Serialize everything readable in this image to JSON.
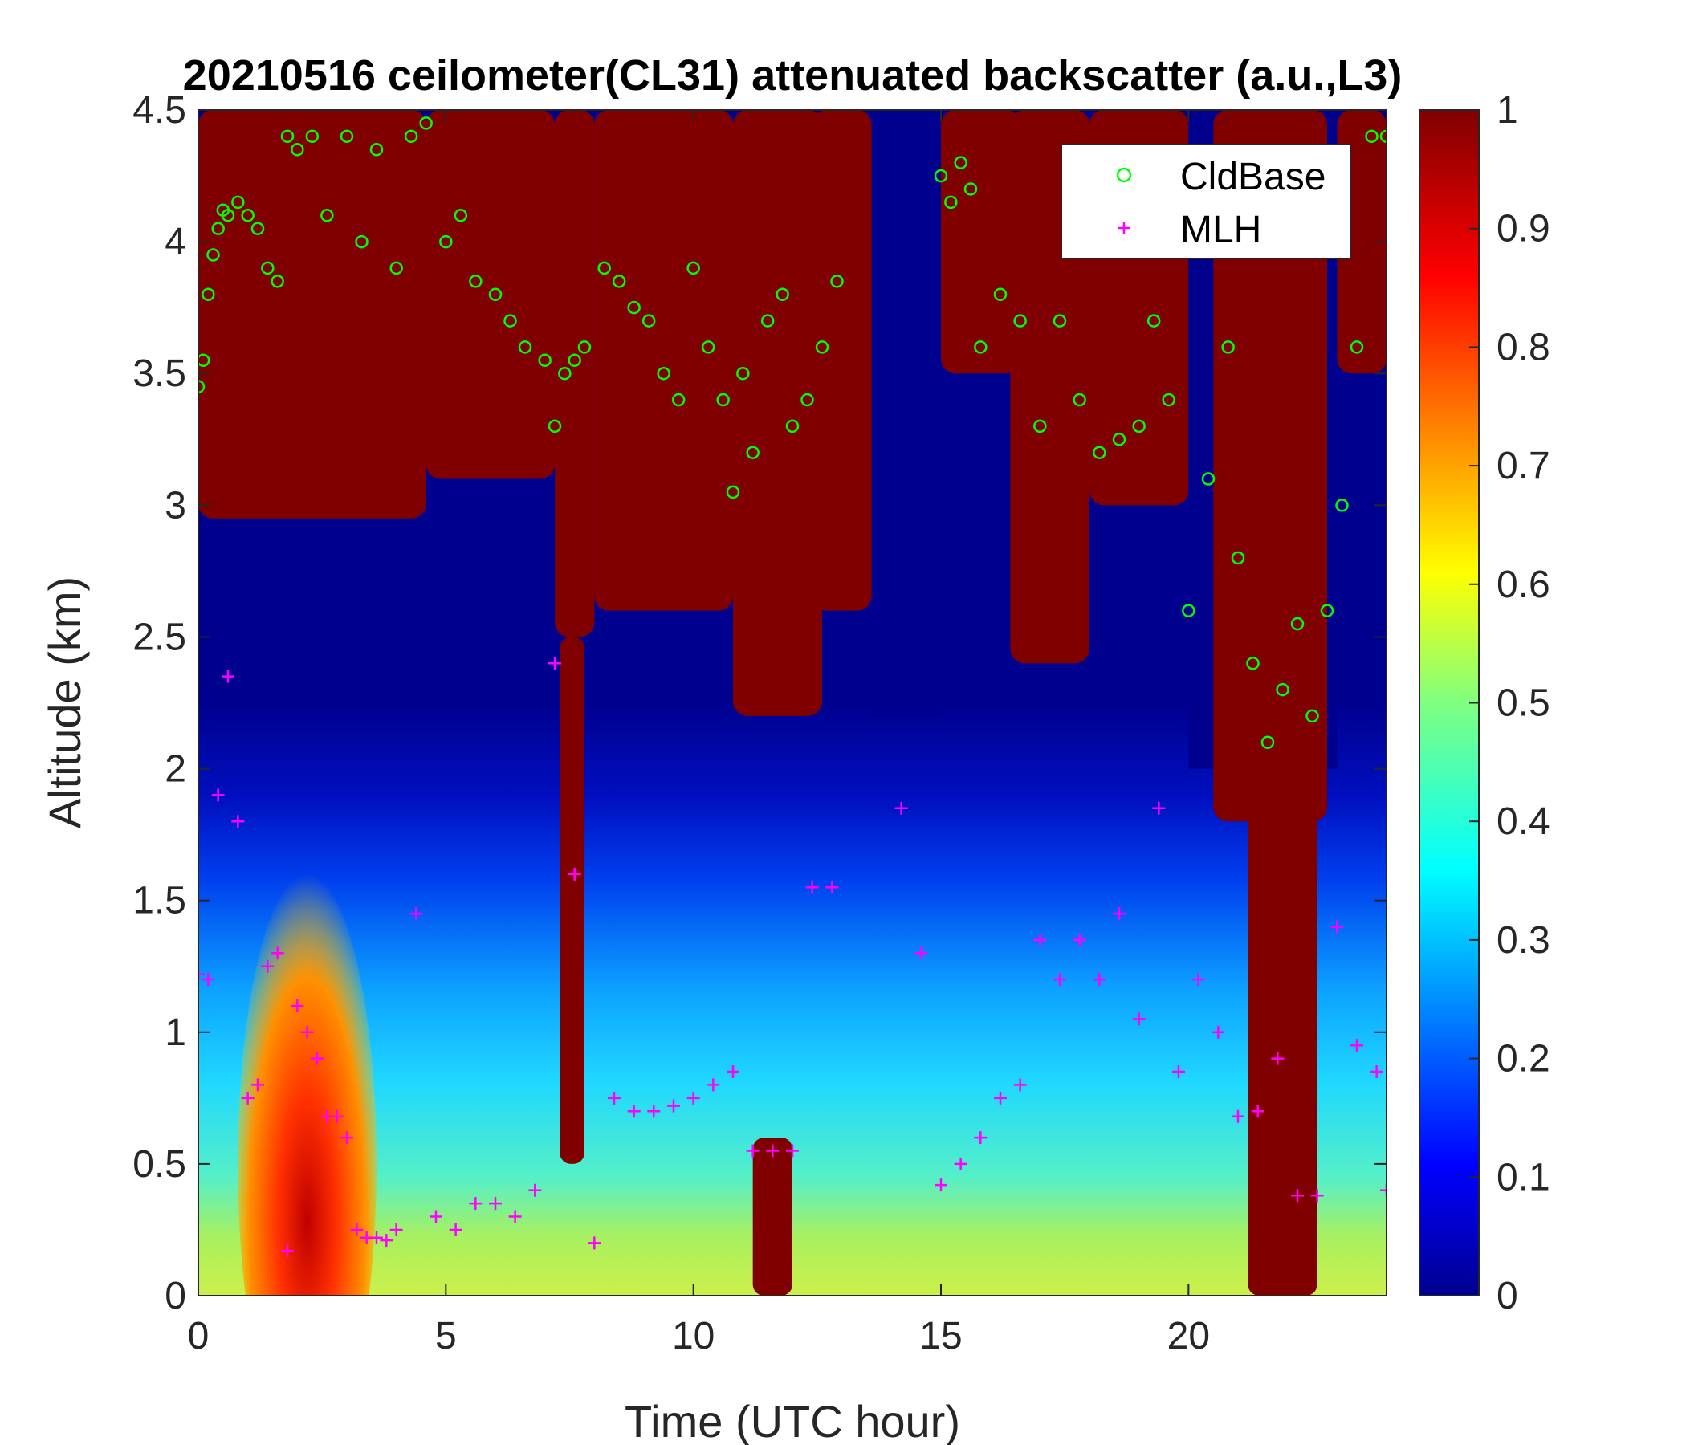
{
  "chart_data": {
    "type": "heatmap",
    "title": "20210516 ceilometer(CL31) attenuated backscatter (a.u.,L3)",
    "xlabel": "Time (UTC hour)",
    "ylabel": "Altitude (km)",
    "xlim": [
      0,
      24
    ],
    "ylim": [
      0,
      4.5
    ],
    "x_ticks": [
      0,
      5,
      10,
      15,
      20
    ],
    "y_ticks": [
      0,
      0.5,
      1,
      1.5,
      2,
      2.5,
      3,
      3.5,
      4,
      4.5
    ],
    "x_tick_labels": [
      "0",
      "5",
      "10",
      "15",
      "20"
    ],
    "y_tick_labels": [
      "0",
      "0.5",
      "1",
      "1.5",
      "2",
      "2.5",
      "3",
      "3.5",
      "4",
      "4.5"
    ],
    "colorbar": {
      "colormap": "jet",
      "range": [
        0,
        1
      ],
      "ticks": [
        0,
        0.1,
        0.2,
        0.3,
        0.4,
        0.5,
        0.6,
        0.7,
        0.8,
        0.9,
        1
      ],
      "tick_labels": [
        "0",
        "0.1",
        "0.2",
        "0.3",
        "0.4",
        "0.5",
        "0.6",
        "0.7",
        "0.8",
        "0.9",
        "1"
      ]
    },
    "legend": {
      "position": "top-right",
      "entries": [
        {
          "name": "CldBase",
          "marker": "circle",
          "color": "#00ff00"
        },
        {
          "name": "MLH",
          "marker": "plus",
          "color": "#ff00ff"
        }
      ]
    },
    "series": [
      {
        "name": "CldBase",
        "marker": "circle",
        "color": "#00ff00",
        "x": [
          0.0,
          0.1,
          0.2,
          0.3,
          0.4,
          0.5,
          0.6,
          0.8,
          1.0,
          1.2,
          1.4,
          1.6,
          1.8,
          2.0,
          2.3,
          2.6,
          3.0,
          3.3,
          3.6,
          4.0,
          4.3,
          4.6,
          5.0,
          5.3,
          5.6,
          6.0,
          6.3,
          6.6,
          7.0,
          7.2,
          7.4,
          7.6,
          7.8,
          8.2,
          8.5,
          8.8,
          9.1,
          9.4,
          9.7,
          10.0,
          10.3,
          10.6,
          10.8,
          11.0,
          11.2,
          11.5,
          11.8,
          12.0,
          12.3,
          12.6,
          12.9,
          15.0,
          15.2,
          15.4,
          15.6,
          15.8,
          16.2,
          16.6,
          17.0,
          17.4,
          17.8,
          18.2,
          18.6,
          19.0,
          19.3,
          19.6,
          20.0,
          20.4,
          20.8,
          21.0,
          21.3,
          21.6,
          21.9,
          22.2,
          22.5,
          22.8,
          23.1,
          23.4,
          23.7,
          24.0
        ],
        "y": [
          3.45,
          3.55,
          3.8,
          3.95,
          4.05,
          4.12,
          4.1,
          4.15,
          4.1,
          4.05,
          3.9,
          3.85,
          4.4,
          4.35,
          4.4,
          4.1,
          4.4,
          4.0,
          4.35,
          3.9,
          4.4,
          4.45,
          4.0,
          4.1,
          3.85,
          3.8,
          3.7,
          3.6,
          3.55,
          3.3,
          3.5,
          3.55,
          3.6,
          3.9,
          3.85,
          3.75,
          3.7,
          3.5,
          3.4,
          3.9,
          3.6,
          3.4,
          3.05,
          3.5,
          3.2,
          3.7,
          3.8,
          3.3,
          3.4,
          3.6,
          3.85,
          4.25,
          4.15,
          4.3,
          4.2,
          3.6,
          3.8,
          3.7,
          3.3,
          3.7,
          3.4,
          3.2,
          3.25,
          3.3,
          3.7,
          3.4,
          2.6,
          3.1,
          3.6,
          2.8,
          2.4,
          2.1,
          2.3,
          2.55,
          2.2,
          2.6,
          3.0,
          3.6,
          4.4,
          4.4
        ]
      },
      {
        "name": "MLH",
        "marker": "plus",
        "color": "#ff00ff",
        "x": [
          0.0,
          0.2,
          0.4,
          0.6,
          0.8,
          1.0,
          1.2,
          1.4,
          1.6,
          1.8,
          2.0,
          2.2,
          2.4,
          2.6,
          2.8,
          3.0,
          3.2,
          3.4,
          3.6,
          3.8,
          4.0,
          4.4,
          4.8,
          5.2,
          5.6,
          6.0,
          6.4,
          6.8,
          7.2,
          7.6,
          8.0,
          8.4,
          8.8,
          9.2,
          9.6,
          10.0,
          10.4,
          10.8,
          11.2,
          11.6,
          12.0,
          12.4,
          12.8,
          14.2,
          14.6,
          15.0,
          15.4,
          15.8,
          16.2,
          16.6,
          17.0,
          17.4,
          17.8,
          18.2,
          18.6,
          19.0,
          19.4,
          19.8,
          20.2,
          20.6,
          21.0,
          21.4,
          21.8,
          22.2,
          22.6,
          23.0,
          23.4,
          23.8,
          24.0
        ],
        "y": [
          1.22,
          1.2,
          1.9,
          2.35,
          1.8,
          0.75,
          0.8,
          1.25,
          1.3,
          0.17,
          1.1,
          1.0,
          0.9,
          0.68,
          0.68,
          0.6,
          0.25,
          0.22,
          0.22,
          0.21,
          0.25,
          1.45,
          0.3,
          0.25,
          0.35,
          0.35,
          0.3,
          0.4,
          2.4,
          1.6,
          0.2,
          0.75,
          0.7,
          0.7,
          0.72,
          0.75,
          0.8,
          0.85,
          0.55,
          0.55,
          0.55,
          1.55,
          1.55,
          1.85,
          1.3,
          0.42,
          0.5,
          0.6,
          0.75,
          0.8,
          1.35,
          1.2,
          1.35,
          1.2,
          1.45,
          1.05,
          1.85,
          0.85,
          1.2,
          1.0,
          0.68,
          0.7,
          0.9,
          0.38,
          0.38,
          1.4,
          0.95,
          0.85,
          0.4
        ]
      }
    ]
  }
}
